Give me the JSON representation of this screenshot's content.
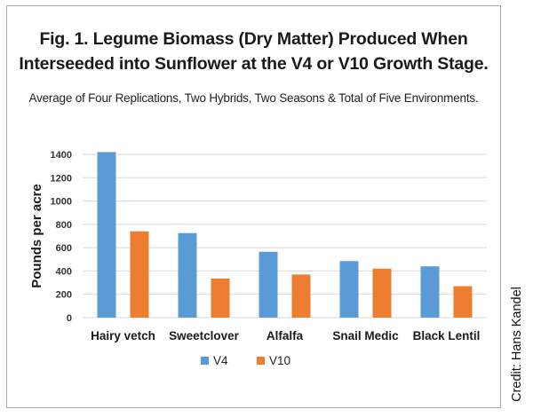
{
  "title_line_1": "Fig. 1.  Legume Biomass (Dry Matter) Produced When",
  "title_line_2": "Interseeded into Sunflower at the V4 or V10 Growth Stage.",
  "subtitle": "Average of Four Replications, Two Hybrids, Two Seasons & Total of Five Environments.",
  "credit": "Credit:  Hans Kandel",
  "colors": {
    "V4": "#5b9bd5",
    "V10": "#ed7d31",
    "grid": "#d9d9d9",
    "frame": "#a9a9a9"
  },
  "chart_data": {
    "type": "bar",
    "categories": [
      "Hairy vetch",
      "Sweetclover",
      "Alfalfa",
      "Snail Medic",
      "Black Lentil"
    ],
    "series": [
      {
        "name": "V4",
        "values": [
          1420,
          725,
          565,
          485,
          440
        ]
      },
      {
        "name": "V10",
        "values": [
          740,
          335,
          370,
          420,
          270
        ]
      }
    ],
    "ylabel": "Pounds per acre",
    "xlabel": "",
    "ylim": [
      0,
      1400
    ],
    "yticks": [
      0,
      200,
      400,
      600,
      800,
      1000,
      1200,
      1400
    ],
    "grid": true,
    "legend_position": "bottom"
  }
}
